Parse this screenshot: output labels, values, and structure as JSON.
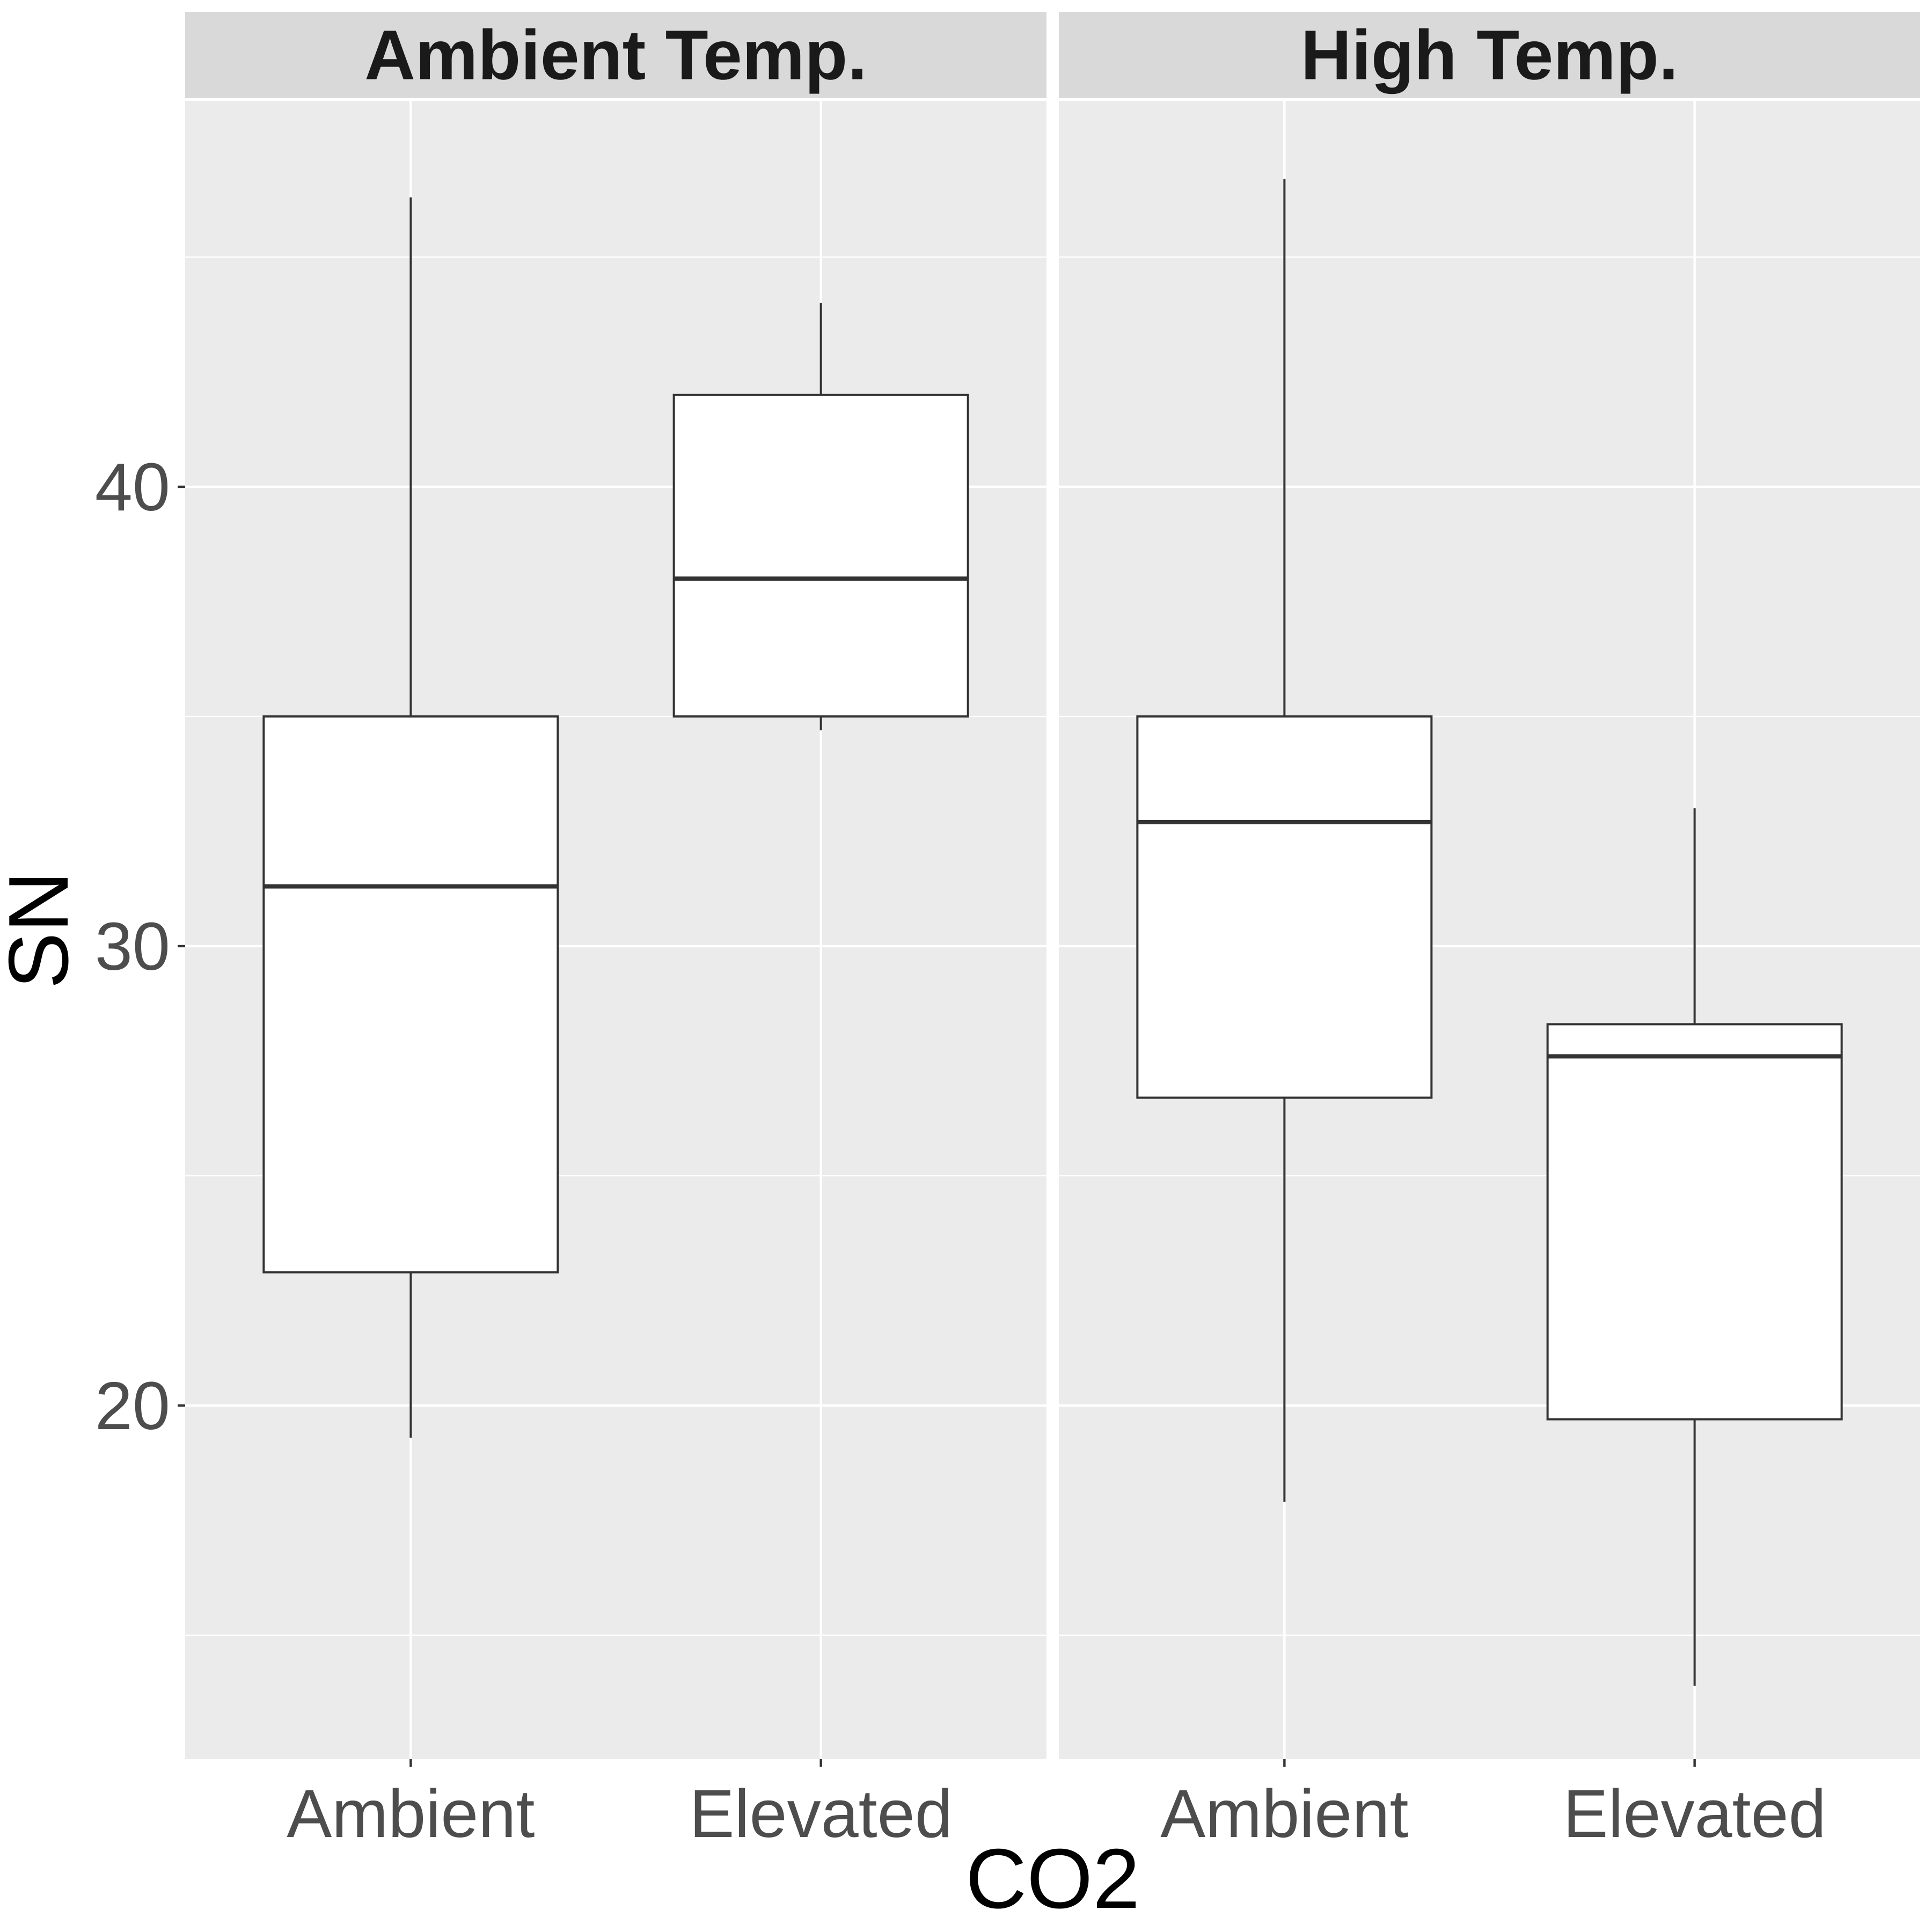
{
  "chart_data": {
    "type": "boxplot",
    "xlabel": "CO2",
    "ylabel": "SN",
    "ylim": [
      12.3,
      48.4
    ],
    "yticks": [
      20,
      30,
      40
    ],
    "minor_yticks": [
      15,
      25,
      35,
      45
    ],
    "grid": true,
    "categories": [
      "Ambient",
      "Elevated"
    ],
    "facets": [
      {
        "label": "Ambient Temp.",
        "boxes": [
          {
            "category": "Ambient",
            "whisker_low": 19.3,
            "q1": 22.9,
            "median": 31.3,
            "q3": 35.0,
            "whisker_high": 46.3
          },
          {
            "category": "Elevated",
            "whisker_low": 34.7,
            "q1": 35.0,
            "median": 38.0,
            "q3": 42.0,
            "whisker_high": 44.0
          }
        ]
      },
      {
        "label": "High Temp.",
        "boxes": [
          {
            "category": "Ambient",
            "whisker_low": 17.9,
            "q1": 26.7,
            "median": 32.7,
            "q3": 35.0,
            "whisker_high": 46.7
          },
          {
            "category": "Elevated",
            "whisker_low": 13.9,
            "q1": 19.7,
            "median": 27.6,
            "q3": 28.3,
            "whisker_high": 33.0
          }
        ]
      }
    ],
    "colors": {
      "panel_background": "#ebebeb",
      "strip_background": "#d9d9d9",
      "gridline": "#ffffff",
      "box_fill": "#ffffff",
      "box_outline": "#333333",
      "tick_label": "#4d4d4d",
      "strip_text": "#1a1a1a"
    }
  }
}
